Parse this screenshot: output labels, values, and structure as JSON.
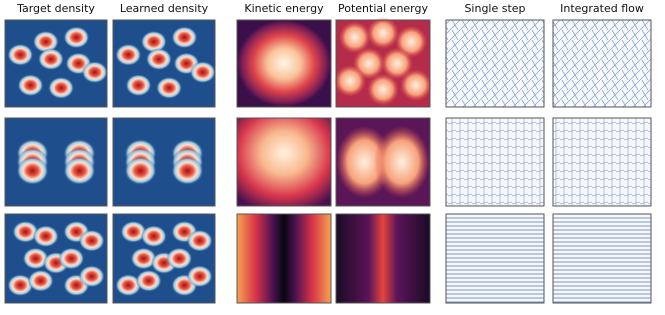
{
  "column_titles": [
    "Target density",
    "Learned density",
    "Kinetic energy",
    "Potential energy",
    "Single step",
    "Integrated flow"
  ]
}
